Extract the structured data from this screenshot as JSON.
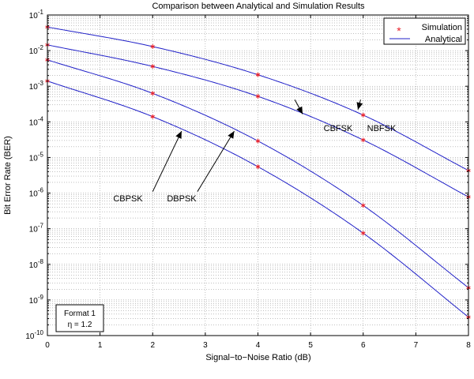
{
  "chart_data": {
    "type": "line",
    "title": "Comparison between Analytical and Simulation Results",
    "xlabel": "Signal−to−Noise Ratio (dB)",
    "ylabel": "Bit Error Rate (BER)",
    "xlim": [
      0,
      8
    ],
    "ylim": [
      1e-10,
      0.1
    ],
    "yscale": "log",
    "grid": true,
    "x_ticks": [
      "0",
      "1",
      "2",
      "3",
      "4",
      "5",
      "6",
      "7",
      "8"
    ],
    "y_ticks": [
      {
        "base": "10",
        "exp": "-1"
      },
      {
        "base": "10",
        "exp": "-2"
      },
      {
        "base": "10",
        "exp": "-3"
      },
      {
        "base": "10",
        "exp": "-4"
      },
      {
        "base": "10",
        "exp": "-5"
      },
      {
        "base": "10",
        "exp": "-6"
      },
      {
        "base": "10",
        "exp": "-7"
      },
      {
        "base": "10",
        "exp": "-8"
      },
      {
        "base": "10",
        "exp": "-9"
      },
      {
        "base": "10",
        "exp": "-10"
      }
    ],
    "legend": {
      "placement": "top-right",
      "entries": [
        {
          "label": "Simulation",
          "marker": "*",
          "color": "#e8202a"
        },
        {
          "label": "Analytical",
          "marker": "line",
          "color": "#2020c8"
        }
      ]
    },
    "series": [
      {
        "curve": "NBFSK",
        "x": [
          0,
          2,
          4,
          6,
          8
        ],
        "y": [
          0.046,
          0.013,
          0.0021,
          0.000155,
          4.3e-06
        ]
      },
      {
        "curve": "CBFSK",
        "x": [
          0,
          2,
          4,
          6,
          8
        ],
        "y": [
          0.0145,
          0.0036,
          0.00052,
          3.1e-05,
          7.8e-07
        ]
      },
      {
        "curve": "DBPSK",
        "x": [
          0,
          2,
          4,
          6,
          8
        ],
        "y": [
          0.0055,
          0.00063,
          2.9e-05,
          4.5e-07,
          2.2e-09
        ]
      },
      {
        "curve": "CBPSK",
        "x": [
          0,
          2,
          4,
          6,
          8
        ],
        "y": [
          0.0014,
          0.00014,
          5.5e-06,
          7.5e-08,
          3.3e-10
        ]
      }
    ],
    "annotations": [
      {
        "text": "CBFSK",
        "arrow_from": [
          4.7,
          0.00042
        ],
        "arrow_to": [
          4.85,
          0.000165
        ]
      },
      {
        "text": "NBFSK",
        "arrow_from": [
          5.95,
          0.00042
        ],
        "arrow_to": [
          5.9,
          0.00022
        ]
      },
      {
        "text": "CBPSK",
        "arrow_from": [
          2.0,
          1.1e-06
        ],
        "arrow_to": [
          2.55,
          5.5e-05
        ]
      },
      {
        "text": "DBPSK",
        "arrow_from": [
          2.85,
          1.1e-06
        ],
        "arrow_to": [
          3.55,
          5.5e-05
        ]
      }
    ],
    "info_box": {
      "line1": "Format 1",
      "line2": "η = 1.2"
    },
    "colors": {
      "line": "#2020c8",
      "marker": "#e8202a",
      "grid": "#808080"
    }
  }
}
